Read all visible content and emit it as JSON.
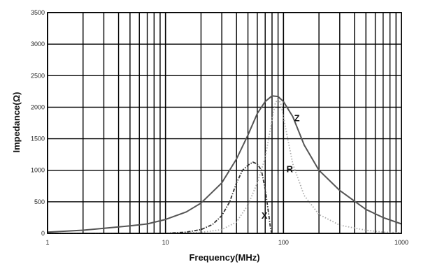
{
  "chart_data": {
    "type": "line",
    "xlabel": "Frequency(MHz)",
    "ylabel": "Impedance(Ω)",
    "xscale": "log",
    "xlim": [
      1,
      1000
    ],
    "ylim": [
      0,
      3500
    ],
    "x_ticks": [
      1,
      10,
      100,
      1000
    ],
    "x_tick_labels": [
      "1",
      "10",
      "100",
      "1000"
    ],
    "y_ticks": [
      0,
      500,
      1000,
      1500,
      2000,
      2500,
      3000,
      3500
    ],
    "y_tick_labels": [
      "0",
      "500",
      "1000",
      "1500",
      "2000",
      "2500",
      "3000",
      "3500"
    ],
    "grid": true,
    "series": [
      {
        "name": "Z",
        "style": "solid",
        "color": "#555555",
        "points": [
          [
            1,
            20
          ],
          [
            2,
            50
          ],
          [
            3,
            80
          ],
          [
            5,
            120
          ],
          [
            7,
            150
          ],
          [
            10,
            220
          ],
          [
            15,
            340
          ],
          [
            20,
            480
          ],
          [
            30,
            800
          ],
          [
            40,
            1180
          ],
          [
            50,
            1560
          ],
          [
            60,
            1900
          ],
          [
            70,
            2090
          ],
          [
            80,
            2180
          ],
          [
            90,
            2170
          ],
          [
            100,
            2090
          ],
          [
            120,
            1850
          ],
          [
            150,
            1400
          ],
          [
            200,
            1000
          ],
          [
            300,
            680
          ],
          [
            500,
            380
          ],
          [
            700,
            250
          ],
          [
            1000,
            150
          ]
        ]
      },
      {
        "name": "R",
        "style": "dotted",
        "color": "#aaaaaa",
        "points": [
          [
            1,
            0
          ],
          [
            10,
            0
          ],
          [
            15,
            5
          ],
          [
            20,
            15
          ],
          [
            30,
            60
          ],
          [
            40,
            180
          ],
          [
            50,
            450
          ],
          [
            60,
            800
          ],
          [
            70,
            1200
          ],
          [
            80,
            1800
          ],
          [
            85,
            2050
          ],
          [
            90,
            2150
          ],
          [
            95,
            2050
          ],
          [
            100,
            1850
          ],
          [
            110,
            1450
          ],
          [
            120,
            1100
          ],
          [
            150,
            600
          ],
          [
            200,
            300
          ],
          [
            300,
            130
          ],
          [
            500,
            50
          ],
          [
            700,
            20
          ],
          [
            1000,
            10
          ]
        ]
      },
      {
        "name": "X",
        "style": "dashdot",
        "color": "#333333",
        "points": [
          [
            1,
            0
          ],
          [
            5,
            0
          ],
          [
            10,
            0
          ],
          [
            15,
            20
          ],
          [
            20,
            60
          ],
          [
            25,
            140
          ],
          [
            30,
            280
          ],
          [
            35,
            500
          ],
          [
            40,
            800
          ],
          [
            45,
            1000
          ],
          [
            50,
            1080
          ],
          [
            55,
            1130
          ],
          [
            60,
            1100
          ],
          [
            65,
            1000
          ],
          [
            70,
            700
          ],
          [
            75,
            300
          ],
          [
            78,
            50
          ],
          [
            80,
            0
          ]
        ]
      }
    ],
    "annotations": [
      {
        "text": "Z",
        "x": 130,
        "y": 1780
      },
      {
        "text": "R",
        "x": 113,
        "y": 970
      },
      {
        "text": "X",
        "x": 69,
        "y": 230
      }
    ]
  }
}
